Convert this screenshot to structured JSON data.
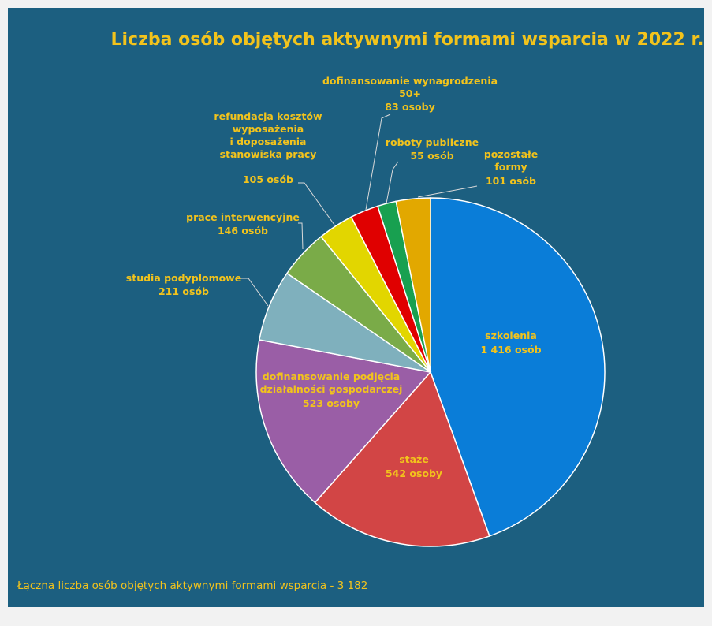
{
  "chart_data": {
    "type": "pie",
    "title": "Liczba osób objętych aktywnymi formami wsparcia w 2022 r.",
    "categories": [
      "szkolenia",
      "staże",
      "dofinansowanie  podjęcia\ndziałalności  gospodarczej",
      "studia podyplomowe",
      "prace interwencyjne",
      "refundacja  kosztów\nwyposażenia\ni doposażenia\nstanowiska  pracy",
      "dofinansowanie  wynagrodzenia\n50+",
      "roboty publiczne",
      "pozostałe\nformy"
    ],
    "values": [
      1416,
      542,
      523,
      211,
      146,
      105,
      83,
      55,
      101
    ],
    "value_labels": [
      "1 416 osób",
      "542 osoby",
      "523 osoby",
      "211 osób",
      "146 osób",
      "105 osób",
      "83 osoby",
      "55 osób",
      "101 osób"
    ],
    "colors": [
      "#0a7dd8",
      "#d24545",
      "#9a5ea6",
      "#7fb0bd",
      "#7aab48",
      "#e2d600",
      "#e00000",
      "#18a050",
      "#e2a800"
    ],
    "annotation": "Łączna liczba osób objętych aktywnymi formami wsparcia - 3 182"
  }
}
